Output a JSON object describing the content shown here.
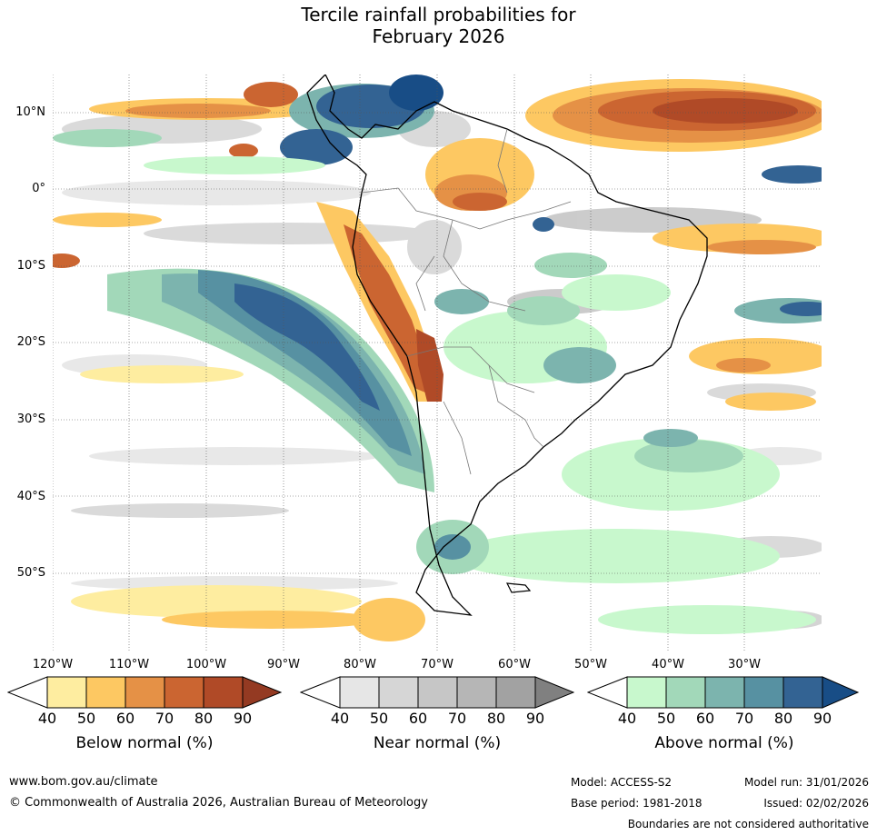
{
  "title": {
    "line1": "Tercile rainfall probabilities for",
    "line2": "February 2026"
  },
  "map": {
    "lat_labels": [
      "10°N",
      "0°",
      "10°S",
      "20°S",
      "30°S",
      "40°S",
      "50°S"
    ],
    "lon_labels": [
      "120°W",
      "110°W",
      "100°W",
      "90°W",
      "80°W",
      "70°W",
      "60°W",
      "50°W",
      "40°W",
      "30°W"
    ],
    "region": "South America"
  },
  "colorbars": [
    {
      "title": "Below normal (%)",
      "ticks": [
        "40",
        "50",
        "60",
        "70",
        "80",
        "90"
      ],
      "colors": [
        "#ffffff",
        "#feeda0",
        "#fdc862",
        "#e59146",
        "#cb6531",
        "#b04a27",
        "#943a22"
      ]
    },
    {
      "title": "Near normal (%)",
      "ticks": [
        "40",
        "50",
        "60",
        "70",
        "80",
        "90"
      ],
      "colors": [
        "#ffffff",
        "#e6e6e6",
        "#d6d6d6",
        "#c6c6c6",
        "#b6b6b6",
        "#a2a2a2",
        "#808080"
      ]
    },
    {
      "title": "Above normal (%)",
      "ticks": [
        "40",
        "50",
        "60",
        "70",
        "80",
        "90"
      ],
      "colors": [
        "#ffffff",
        "#c8f8cd",
        "#a2d8b9",
        "#7cb4ae",
        "#5791a2",
        "#336393",
        "#184d86"
      ]
    }
  ],
  "footer": {
    "website": "www.bom.gov.au/climate",
    "copyright": "© Commonwealth of Australia 2026, Australian Bureau of Meteorology",
    "model": "Model: ACCESS-S2",
    "model_run": "Model run: 31/01/2026",
    "base_period": "Base period: 1981-2018",
    "issued": "Issued: 02/02/2026",
    "disclaimer": "Boundaries are not considered authoritative"
  }
}
